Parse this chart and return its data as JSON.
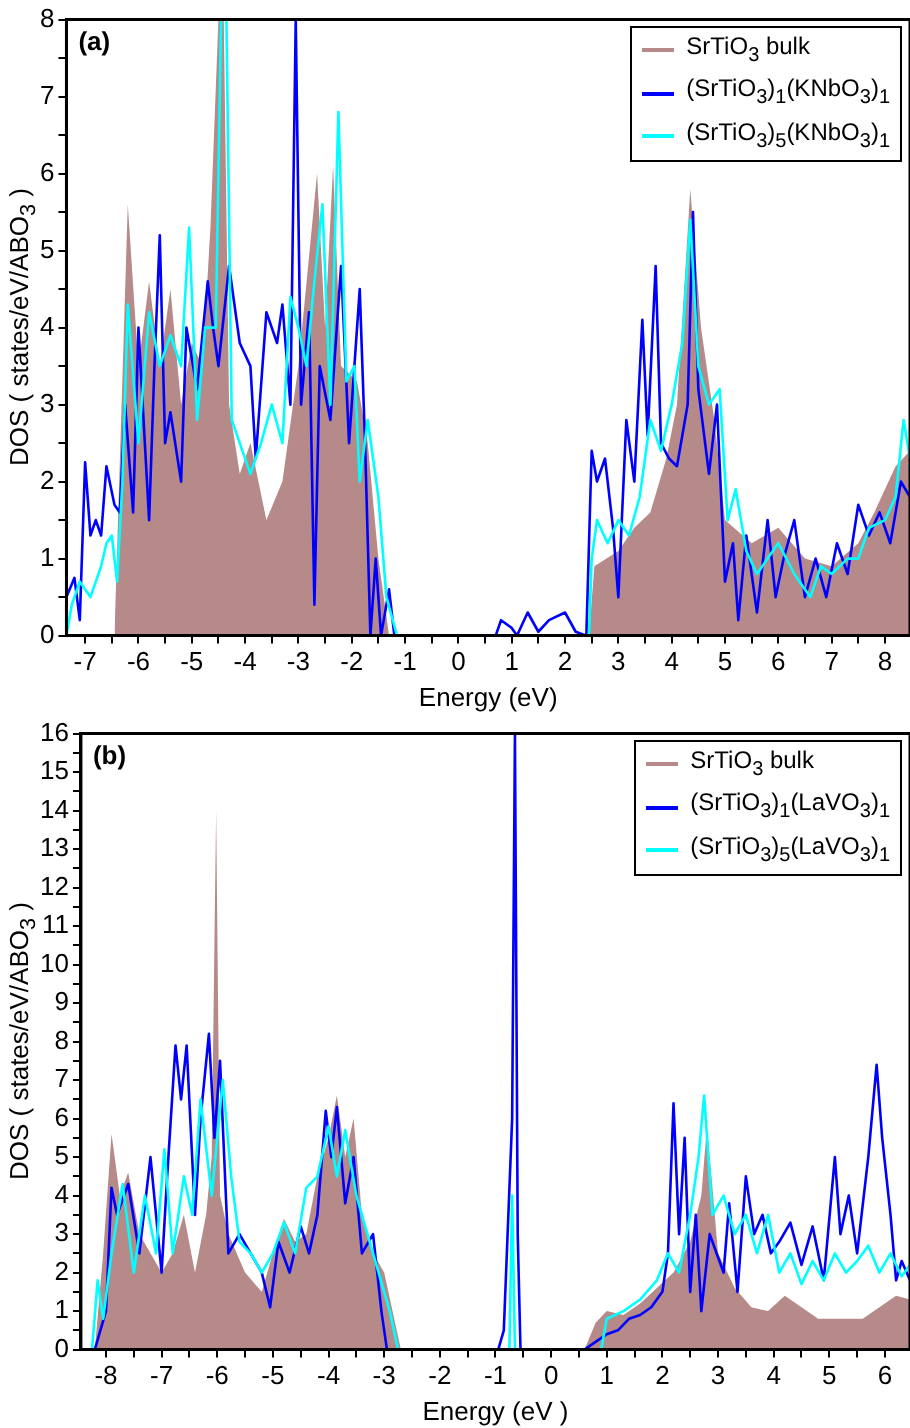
{
  "chart_data": [
    {
      "type": "line",
      "annotations": [
        "(a)"
      ],
      "xlabel": "Energy (eV)",
      "ylabel": "DOS ( states/eV/ABO$_{3}$ )",
      "legend": "top right",
      "xlim": [
        -7.35,
        8.47
      ],
      "ylim": [
        0,
        8
      ],
      "xticks": [
        {
          "value": -7,
          "label": "-7"
        },
        {
          "value": -6.5,
          "label": null
        },
        {
          "value": -6,
          "label": "-6"
        },
        {
          "value": -5.5,
          "label": null
        },
        {
          "value": -5,
          "label": "-5"
        },
        {
          "value": -4.5,
          "label": null
        },
        {
          "value": -4,
          "label": "-4"
        },
        {
          "value": -3.5,
          "label": null
        },
        {
          "value": -3,
          "label": "-3"
        },
        {
          "value": -2.5,
          "label": null
        },
        {
          "value": -2,
          "label": "-2"
        },
        {
          "value": -1.5,
          "label": null
        },
        {
          "value": -1,
          "label": "-1"
        },
        {
          "value": -0.5,
          "label": null
        },
        0,
        {
          "value": 0.5,
          "label": null
        },
        1,
        {
          "value": 1.5,
          "label": null
        },
        2,
        {
          "value": 2.5,
          "label": null
        },
        3,
        {
          "value": 3.5,
          "label": null
        },
        4,
        {
          "value": 4.5,
          "label": null
        },
        5,
        {
          "value": 5.5,
          "label": null
        },
        6,
        {
          "value": 6.5,
          "label": null
        },
        7,
        {
          "value": 7.5,
          "label": null
        },
        8
      ],
      "yticks": [
        0,
        {
          "value": 0.5,
          "label": null
        },
        1,
        {
          "value": 1.5,
          "label": null
        },
        2,
        {
          "value": 2.5,
          "label": null
        },
        3,
        {
          "value": 3.5,
          "label": null
        },
        4,
        {
          "value": 4.5,
          "label": null
        },
        5,
        {
          "value": 5.5,
          "label": null
        },
        6,
        {
          "value": 6.5,
          "label": null
        },
        7,
        {
          "value": 7.5,
          "label": null
        },
        8
      ],
      "series": [
        {
          "type": "area",
          "name": "SrTiO$_{3}$ bulk",
          "color": "#b58a88",
          "x": [
            -6.45,
            -6.2,
            -6.0,
            -5.8,
            -5.6,
            -5.4,
            -5.2,
            -5.0,
            -4.8,
            -4.65,
            -4.5,
            -4.4,
            -4.3,
            -4.1,
            -3.9,
            -3.6,
            -3.3,
            -3.0,
            -2.65,
            -2.5,
            -2.35,
            -2.2,
            -1.9,
            -1.7,
            -1.5,
            -1.3,
            2.45,
            2.55,
            3.0,
            3.3,
            3.6,
            3.9,
            4.1,
            4.35,
            4.55,
            4.8,
            5.0,
            5.5,
            6.0,
            6.5,
            7.0,
            7.5,
            7.8,
            8.2,
            8.47
          ],
          "values": [
            0,
            5.6,
            3.5,
            4.6,
            3.5,
            4.5,
            3,
            3.8,
            3.5,
            5.3,
            8,
            8,
            3,
            2.1,
            2.5,
            1.5,
            2,
            3.5,
            6,
            4,
            6.1,
            3.5,
            3.3,
            2.5,
            1,
            0,
            0,
            0.9,
            1.1,
            1.4,
            1.6,
            2.3,
            3,
            5.8,
            4,
            2.8,
            1.5,
            1.2,
            1.4,
            1,
            0.9,
            1.2,
            1.6,
            2.2,
            2.4
          ]
        },
        {
          "type": "line",
          "name": "(SrTiO$_{3}$)$_{1}$(KNbO$_{3}$)$_{1}$",
          "color": "#0000ff",
          "x": [
            -7.35,
            -7.2,
            -7.1,
            -7.0,
            -6.9,
            -6.8,
            -6.7,
            -6.6,
            -6.45,
            -6.35,
            -6.25,
            -6.1,
            -6.0,
            -5.8,
            -5.7,
            -5.6,
            -5.5,
            -5.4,
            -5.2,
            -5.1,
            -4.9,
            -4.7,
            -4.6,
            -4.5,
            -4.3,
            -4.1,
            -3.9,
            -3.8,
            -3.6,
            -3.4,
            -3.3,
            -3.15,
            -3.05,
            -2.95,
            -2.8,
            -2.7,
            -2.6,
            -2.4,
            -2.2,
            -2.05,
            -1.85,
            -1.75,
            -1.65,
            -1.55,
            -1.45,
            -1.3,
            -1.2,
            0.7,
            0.8,
            1.0,
            1.1,
            1.3,
            1.5,
            1.7,
            2.0,
            2.2,
            2.4,
            2.5,
            2.6,
            2.75,
            2.9,
            3.0,
            3.15,
            3.3,
            3.45,
            3.55,
            3.7,
            3.8,
            3.95,
            4.1,
            4.3,
            4.4,
            4.5,
            4.7,
            4.85,
            5.0,
            5.15,
            5.25,
            5.4,
            5.6,
            5.8,
            5.95,
            6.1,
            6.3,
            6.5,
            6.7,
            6.9,
            7.1,
            7.3,
            7.5,
            7.7,
            7.9,
            8.1,
            8.3,
            8.47
          ],
          "values": [
            0.5,
            0.75,
            0.2,
            2.25,
            1.3,
            1.5,
            1.3,
            2.2,
            1.7,
            1.6,
            3,
            1.6,
            4,
            1.5,
            3.5,
            5.2,
            2.5,
            2.9,
            2,
            4,
            3.2,
            4.6,
            4,
            3.5,
            4.8,
            3.8,
            3.5,
            2.3,
            4.2,
            3.8,
            4.3,
            3,
            8,
            3,
            4.2,
            0.4,
            3.5,
            2.8,
            4.8,
            2.5,
            4.5,
            2.5,
            0,
            1,
            0,
            0.6,
            0,
            0,
            0.2,
            0.1,
            0,
            0.3,
            0.05,
            0.2,
            0.3,
            0.05,
            0,
            2.4,
            2,
            2.3,
            1.4,
            0.5,
            2.8,
            2,
            4.1,
            2.6,
            4.8,
            2.5,
            2.3,
            2.2,
            3,
            5.5,
            3.2,
            2.1,
            3,
            0.7,
            1.2,
            0.2,
            1.3,
            0.3,
            1.5,
            0.5,
            1,
            1.5,
            0.5,
            1,
            0.5,
            1.2,
            0.8,
            1.7,
            1.3,
            1.6,
            1.2,
            2,
            1.8
          ]
        },
        {
          "type": "line",
          "name": "(SrTiO$_{3}$)$_{5}$(KNbO$_{3}$)$_{1}$",
          "color": "#00ffff",
          "x": [
            -7.35,
            -7.25,
            -7.1,
            -6.9,
            -6.7,
            -6.6,
            -6.5,
            -6.4,
            -6.3,
            -6.2,
            -6.0,
            -5.8,
            -5.6,
            -5.4,
            -5.2,
            -5.05,
            -4.9,
            -4.75,
            -4.55,
            -4.45,
            -4.35,
            -4.25,
            -4.1,
            -3.9,
            -3.7,
            -3.5,
            -3.3,
            -3.15,
            -3.0,
            -2.85,
            -2.7,
            -2.55,
            -2.4,
            -2.25,
            -2.1,
            -1.95,
            -1.85,
            -1.7,
            -1.5,
            -1.35,
            -1.15,
            2.45,
            2.5,
            2.6,
            2.8,
            3.0,
            3.2,
            3.4,
            3.6,
            3.8,
            4.0,
            4.2,
            4.35,
            4.5,
            4.7,
            4.9,
            5.05,
            5.2,
            5.4,
            5.6,
            5.8,
            6.0,
            6.3,
            6.6,
            6.8,
            7.0,
            7.3,
            7.5,
            7.7,
            8.0,
            8.2,
            8.35,
            8.47
          ],
          "values": [
            0,
            0.4,
            0.7,
            0.5,
            0.9,
            1.2,
            1.3,
            0.7,
            2,
            4.3,
            2.5,
            4.2,
            3.5,
            3.9,
            3.5,
            5.3,
            2.8,
            4,
            4,
            8,
            8,
            2.8,
            2.5,
            2.1,
            2.5,
            3,
            2.5,
            4.4,
            4,
            3.5,
            4.6,
            5.6,
            3,
            6.8,
            3.3,
            3.5,
            2,
            2.8,
            1.8,
            0.5,
            0,
            0,
            1,
            1.5,
            1.2,
            1.5,
            1.3,
            1.8,
            2.8,
            2.4,
            3,
            3.8,
            5.4,
            3.5,
            3,
            3.2,
            1.5,
            1.9,
            1.1,
            0.8,
            1,
            1.2,
            0.8,
            0.5,
            0.9,
            0.8,
            1,
            1,
            1.4,
            1.5,
            1.8,
            2.8,
            2.3
          ]
        }
      ]
    },
    {
      "type": "line",
      "annotations": [
        "(b)"
      ],
      "xlabel": "Energy (eV )",
      "ylabel": "DOS ( states/eV/ABO$_{3}$ )",
      "legend": "top right",
      "xlim": [
        -8.45,
        6.45
      ],
      "ylim": [
        0,
        16
      ],
      "xticks": [
        {
          "value": -8,
          "label": "-8"
        },
        {
          "value": -7.5,
          "label": null
        },
        {
          "value": -7,
          "label": "-7"
        },
        {
          "value": -6.5,
          "label": null
        },
        {
          "value": -6,
          "label": "-6"
        },
        {
          "value": -5.5,
          "label": null
        },
        {
          "value": -5,
          "label": "-5"
        },
        {
          "value": -4.5,
          "label": null
        },
        {
          "value": -4,
          "label": "-4"
        },
        {
          "value": -3.5,
          "label": null
        },
        {
          "value": -3,
          "label": "-3"
        },
        {
          "value": -2.5,
          "label": null
        },
        {
          "value": -2,
          "label": "-2"
        },
        {
          "value": -1.5,
          "label": null
        },
        {
          "value": -1,
          "label": "-1"
        },
        {
          "value": -0.5,
          "label": null
        },
        0,
        {
          "value": 0.5,
          "label": null
        },
        1,
        {
          "value": 1.5,
          "label": null
        },
        2,
        {
          "value": 2.5,
          "label": null
        },
        3,
        {
          "value": 3.5,
          "label": null
        },
        4,
        {
          "value": 4.5,
          "label": null
        },
        5,
        {
          "value": 5.5,
          "label": null
        },
        6
      ],
      "yticks": [
        0,
        {
          "value": 0.5,
          "label": null
        },
        1,
        {
          "value": 1.5,
          "label": null
        },
        2,
        {
          "value": 2.5,
          "label": null
        },
        3,
        {
          "value": 3.5,
          "label": null
        },
        4,
        {
          "value": 4.5,
          "label": null
        },
        5,
        {
          "value": 5.5,
          "label": null
        },
        6,
        {
          "value": 6.5,
          "label": null
        },
        7,
        {
          "value": 7.5,
          "label": null
        },
        8,
        {
          "value": 8.5,
          "label": null
        },
        9,
        {
          "value": 9.5,
          "label": null
        },
        10,
        {
          "value": 10.5,
          "label": null
        },
        11,
        {
          "value": 11.5,
          "label": null
        },
        12,
        {
          "value": 12.5,
          "label": null
        },
        13,
        {
          "value": 13.5,
          "label": null
        },
        14,
        {
          "value": 14.5,
          "label": null
        },
        15,
        {
          "value": 15.5,
          "label": null
        },
        16
      ],
      "series": [
        {
          "type": "area",
          "name": "SrTiO$_{3}$ bulk",
          "color": "#b58a88",
          "x": [
            -8.2,
            -8.05,
            -7.9,
            -7.75,
            -7.6,
            -7.4,
            -7.2,
            -7.0,
            -6.8,
            -6.6,
            -6.4,
            -6.2,
            -6.1,
            -6.02,
            -5.95,
            -5.8,
            -5.5,
            -5.2,
            -5.0,
            -4.8,
            -4.6,
            -4.4,
            -4.2,
            -4.0,
            -3.85,
            -3.7,
            -3.55,
            -3.4,
            -3.2,
            -3.0,
            -2.85,
            -2.7,
            0.6,
            0.8,
            1.0,
            1.3,
            1.6,
            1.9,
            2.2,
            2.5,
            2.7,
            2.8,
            2.9,
            3.0,
            3.3,
            3.6,
            3.9,
            4.2,
            4.5,
            4.8,
            5.2,
            5.6,
            5.9,
            6.2,
            6.45
          ],
          "values": [
            0,
            2.5,
            5.6,
            4,
            4.6,
            3,
            2.5,
            2,
            2.5,
            3.5,
            2,
            3.5,
            5,
            14,
            4,
            3,
            2,
            1.5,
            2.5,
            3.4,
            2.8,
            3,
            4.5,
            5.5,
            6.6,
            5,
            6,
            3.5,
            2.5,
            2,
            1,
            0,
            0,
            0.7,
            1,
            0.9,
            1.2,
            1.6,
            2,
            2.8,
            4,
            5.8,
            4.2,
            2.5,
            1.6,
            1.1,
            1,
            1.4,
            1.1,
            0.8,
            0.8,
            0.8,
            1.1,
            1.4,
            1.3
          ]
        },
        {
          "type": "line",
          "name": "(SrTiO$_{3}$)$_{1}$(LaVO$_{3}$)$_{1}$",
          "color": "#0000ff",
          "x": [
            -8.2,
            -8.0,
            -7.9,
            -7.8,
            -7.6,
            -7.4,
            -7.2,
            -7.0,
            -6.9,
            -6.75,
            -6.65,
            -6.55,
            -6.4,
            -6.3,
            -6.15,
            -6.05,
            -5.95,
            -5.8,
            -5.6,
            -5.4,
            -5.2,
            -5.05,
            -4.9,
            -4.7,
            -4.5,
            -4.35,
            -4.2,
            -4.05,
            -3.95,
            -3.85,
            -3.7,
            -3.55,
            -3.4,
            -3.2,
            -3.05,
            -2.95,
            -0.95,
            -0.85,
            -0.7,
            -0.65,
            -0.6,
            -0.55,
            0.6,
            0.8,
            1.0,
            1.2,
            1.4,
            1.6,
            1.8,
            2.0,
            2.1,
            2.2,
            2.3,
            2.4,
            2.5,
            2.6,
            2.7,
            2.85,
            3.0,
            3.1,
            3.2,
            3.35,
            3.5,
            3.65,
            3.8,
            3.95,
            4.1,
            4.3,
            4.5,
            4.7,
            4.9,
            5.1,
            5.2,
            5.35,
            5.5,
            5.7,
            5.85,
            5.95,
            6.1,
            6.2,
            6.3,
            6.45
          ],
          "values": [
            0,
            1,
            4.2,
            3.5,
            4.3,
            2.5,
            5,
            2,
            4.5,
            7.9,
            6.5,
            7.9,
            3.5,
            6,
            8.2,
            5.5,
            7.5,
            2.5,
            3,
            2.5,
            2,
            1.1,
            2.8,
            2,
            3.2,
            2.5,
            3.5,
            6.2,
            5,
            6.3,
            3.8,
            5,
            2.5,
            3,
            1,
            0,
            0,
            0.5,
            6,
            16,
            3,
            0,
            0,
            0.2,
            0.4,
            0.5,
            0.8,
            0.9,
            1.1,
            1.5,
            2.5,
            6.4,
            3,
            5.5,
            1.5,
            3.5,
            1,
            3,
            2.4,
            2,
            3.8,
            1.5,
            4.5,
            3,
            3.5,
            2.5,
            2.8,
            3.3,
            2.2,
            3.2,
            1.8,
            5,
            3,
            4,
            2.5,
            5,
            7.4,
            5.5,
            3.5,
            1.8,
            2.3,
            1.8
          ]
        },
        {
          "type": "line",
          "name": "(SrTiO$_{3}$)$_{5}$(LaVO$_{3}$)$_{1}$",
          "color": "#00ffff",
          "x": [
            -8.25,
            -8.15,
            -8.05,
            -7.9,
            -7.7,
            -7.5,
            -7.3,
            -7.1,
            -6.95,
            -6.8,
            -6.6,
            -6.45,
            -6.3,
            -6.1,
            -5.9,
            -5.75,
            -5.6,
            -5.4,
            -5.2,
            -5.0,
            -4.8,
            -4.6,
            -4.4,
            -4.2,
            -4.0,
            -3.85,
            -3.7,
            -3.5,
            -3.3,
            -3.1,
            -2.9,
            -2.75,
            -0.75,
            -0.7,
            -0.65,
            0.9,
            1.0,
            1.3,
            1.6,
            1.9,
            2.1,
            2.3,
            2.5,
            2.65,
            2.75,
            2.9,
            3.1,
            3.3,
            3.5,
            3.7,
            3.9,
            4.1,
            4.3,
            4.5,
            4.7,
            4.9,
            5.1,
            5.3,
            5.5,
            5.7,
            5.9,
            6.1,
            6.3,
            6.45
          ],
          "values": [
            0,
            1.8,
            0.8,
            2.5,
            4.3,
            2,
            4,
            2.5,
            5.2,
            2.5,
            4.5,
            3.5,
            6.5,
            4,
            7,
            4.5,
            2.8,
            2.5,
            2,
            2.5,
            3.3,
            2.5,
            4.2,
            4.5,
            5.8,
            4.5,
            5.7,
            4,
            3,
            2,
            1,
            0,
            0,
            4,
            0,
            0,
            0.8,
            1,
            1.3,
            1.8,
            2.5,
            2,
            3.5,
            5,
            6.6,
            3.5,
            4,
            3,
            3.5,
            2.5,
            3.5,
            2,
            2.5,
            1.7,
            2.3,
            1.8,
            2.5,
            2,
            2.3,
            2.7,
            2,
            2.5,
            1.9,
            2.2
          ]
        }
      ]
    }
  ]
}
